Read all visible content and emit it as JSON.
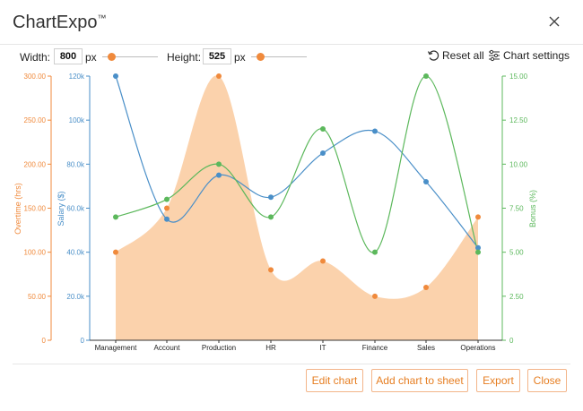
{
  "app": {
    "title": "ChartExpo",
    "trademark": "™"
  },
  "toolbar": {
    "width_label": "Width:",
    "width_value": "800",
    "width_unit": "px",
    "height_label": "Height:",
    "height_value": "525",
    "height_unit": "px",
    "reset_label": "Reset all",
    "settings_label": "Chart settings"
  },
  "footer": {
    "edit_label": "Edit chart",
    "add_label": "Add chart to sheet",
    "export_label": "Export",
    "close_label": "Close"
  },
  "colors": {
    "overtime": "#f08a3c",
    "overtime_fill": "#fbd2ac",
    "salary": "#4a8fc8",
    "bonus": "#5cb85c",
    "accent": "#e67e22"
  },
  "chart_data": {
    "type": "line",
    "categories": [
      "Management",
      "Account",
      "Production",
      "HR",
      "IT",
      "Finance",
      "Sales",
      "Operations"
    ],
    "series": [
      {
        "name": "Overtime (hrs)",
        "type": "area",
        "axis": "left",
        "values": [
          100,
          150,
          300,
          80,
          90,
          50,
          60,
          140
        ]
      },
      {
        "name": "Salary ($)",
        "type": "line",
        "axis": "left2",
        "values": [
          120000,
          55000,
          75000,
          65000,
          85000,
          95000,
          72000,
          42000
        ]
      },
      {
        "name": "Bonus (%)",
        "type": "line",
        "axis": "right",
        "values": [
          7,
          8,
          10,
          7,
          12,
          5,
          15,
          5
        ]
      }
    ],
    "axes": {
      "overtime": {
        "label": "Overtime (hrs)",
        "range": [
          0,
          300
        ],
        "ticks": [
          "0",
          "50.00",
          "100.00",
          "150.00",
          "200.00",
          "250.00",
          "300.00"
        ]
      },
      "salary": {
        "label": "Salary ($)",
        "range": [
          0,
          120000
        ],
        "ticks": [
          "0",
          "20.0k",
          "40.0k",
          "60.0k",
          "80.0k",
          "100k",
          "120k"
        ]
      },
      "bonus": {
        "label": "Bonus (%)",
        "range": [
          0,
          15
        ],
        "ticks": [
          "0",
          "2.50",
          "5.00",
          "7.50",
          "10.00",
          "12.50",
          "15.00"
        ]
      }
    },
    "grid": false
  }
}
